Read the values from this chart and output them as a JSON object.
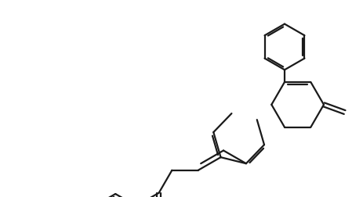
{
  "bg_color": "#ffffff",
  "line_color": "#1a1a1a",
  "line_width": 1.6,
  "fig_width": 4.63,
  "fig_height": 2.53,
  "dpi": 100
}
